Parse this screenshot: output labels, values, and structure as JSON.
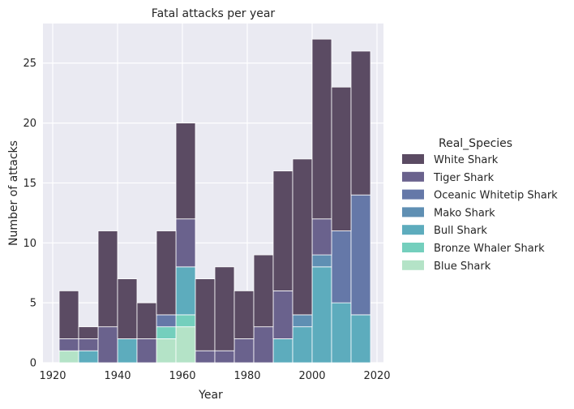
{
  "chart_data": {
    "type": "bar",
    "stacked": true,
    "title": "Fatal attacks per year",
    "xlabel": "Year",
    "ylabel": "Number of attacks",
    "xlim": [
      1917,
      2022
    ],
    "ylim": [
      0,
      28.3
    ],
    "x_ticks": [
      1920,
      1940,
      1960,
      1980,
      2000,
      2020
    ],
    "y_ticks": [
      0,
      5,
      10,
      15,
      20,
      25
    ],
    "grid": true,
    "legend_title": "Real_Species",
    "legend_position": "right",
    "bin_edges": [
      1922,
      1928,
      1934,
      1940,
      1946,
      1952,
      1958,
      1964,
      1970,
      1976,
      1982,
      1988,
      1994,
      2000,
      2006,
      2012,
      2018
    ],
    "series": [
      {
        "name": "White Shark",
        "color": "#5b4b63",
        "values": [
          4,
          1,
          8,
          5,
          3,
          7,
          8,
          6,
          7,
          4,
          6,
          10,
          13,
          15,
          12,
          12
        ]
      },
      {
        "name": "Tiger Shark",
        "color": "#6a628d",
        "values": [
          1,
          1,
          3,
          0,
          2,
          0,
          4,
          1,
          1,
          2,
          3,
          4,
          0,
          3,
          0,
          0
        ]
      },
      {
        "name": "Oceanic Whitetip Shark",
        "color": "#6578a8",
        "values": [
          0,
          0,
          0,
          0,
          0,
          1,
          0,
          0,
          0,
          0,
          0,
          0,
          0,
          0,
          6,
          10
        ]
      },
      {
        "name": "Mako Shark",
        "color": "#5f8fb3",
        "values": [
          0,
          0,
          0,
          0,
          0,
          0,
          0,
          0,
          0,
          0,
          0,
          0,
          1,
          1,
          0,
          0
        ]
      },
      {
        "name": "Bull Shark",
        "color": "#5dacbd",
        "values": [
          0,
          1,
          0,
          2,
          0,
          0,
          4,
          0,
          0,
          0,
          0,
          2,
          3,
          8,
          5,
          4
        ]
      },
      {
        "name": "Bronze Whaler Shark",
        "color": "#74cfbd",
        "values": [
          0,
          0,
          0,
          0,
          0,
          1,
          1,
          0,
          0,
          0,
          0,
          0,
          0,
          0,
          0,
          0
        ]
      },
      {
        "name": "Blue Shark",
        "color": "#b4e3c7",
        "values": [
          1,
          0,
          0,
          0,
          0,
          2,
          3,
          0,
          0,
          0,
          0,
          0,
          0,
          0,
          0,
          0
        ]
      }
    ]
  }
}
